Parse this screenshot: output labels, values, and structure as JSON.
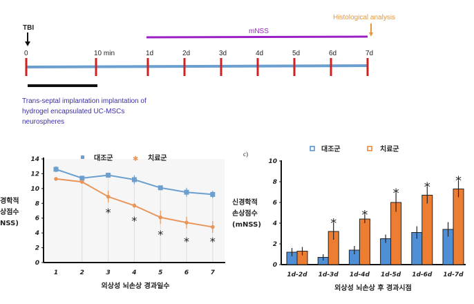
{
  "timeline": {
    "event_label": "TBI",
    "ticks": [
      "0",
      "10 min",
      "1d",
      "2d",
      "3d",
      "4d",
      "5d",
      "6d",
      "7d"
    ],
    "mnss_label": "mNSS",
    "histology_label": "Histological analysis",
    "caption_lines": [
      "Trans-septal implantation  implantation of",
      "hydrogel encapsulated UC-MSCs",
      "neurospheres"
    ],
    "colors": {
      "line": "#6a9fcf",
      "ticks": "#d02020",
      "mnss": "#9b1fc4",
      "histology": "#e8963a",
      "caption": "#3a2fa8"
    }
  },
  "chart_data": [
    {
      "type": "line",
      "x": [
        1,
        2,
        3,
        4,
        5,
        6,
        7
      ],
      "xlabel": "외상성 뇌손상 경과일수",
      "ylabel_lines": [
        "경학적",
        "상점수",
        "NSS)"
      ],
      "ylim": [
        0,
        14
      ],
      "yticks": [
        0,
        2,
        4,
        6,
        8,
        10,
        12,
        14
      ],
      "legend_placement": "top",
      "series": [
        {
          "name": "대조군",
          "color": "#6a9fcf",
          "marker": "square",
          "values": [
            12.6,
            11.4,
            11.8,
            11.2,
            10.1,
            9.5,
            9.2
          ],
          "errors": [
            0.4,
            0.3,
            0.3,
            0.6,
            0.3,
            0.6,
            0.5
          ]
        },
        {
          "name": "치료군",
          "color": "#e8955a",
          "marker": "star",
          "values": [
            11.3,
            10.9,
            8.9,
            7.7,
            6.1,
            5.4,
            4.8
          ],
          "errors": [
            0.2,
            0.2,
            0.8,
            0.3,
            0.9,
            0.8,
            0.8
          ]
        }
      ],
      "significance": {
        "symbol": "*",
        "x": [
          3,
          4,
          5,
          6,
          7
        ]
      }
    },
    {
      "type": "bar",
      "panel_label": "c)",
      "categories": [
        "1d-2d",
        "1d-3d",
        "1d-4d",
        "1d-5d",
        "1d-6d",
        "1d-7d"
      ],
      "xlabel": "외상성 뇌손상 후 경과시점",
      "ylabel_lines": [
        "신경학적",
        "손상점수",
        "(mNSS)"
      ],
      "ylim": [
        0,
        10
      ],
      "yticks": [
        0,
        2,
        4,
        6,
        8,
        10
      ],
      "legend_placement": "top",
      "series": [
        {
          "name": "대조군",
          "color": "#4f8fd6",
          "values": [
            1.2,
            0.7,
            1.4,
            2.5,
            3.1,
            3.4
          ],
          "errors": [
            0.4,
            0.3,
            0.4,
            0.4,
            0.6,
            0.7
          ]
        },
        {
          "name": "치료군",
          "color": "#ed7d31",
          "values": [
            1.3,
            3.2,
            4.4,
            6.0,
            6.7,
            7.3
          ],
          "errors": [
            0.4,
            0.8,
            0.4,
            0.9,
            0.8,
            0.8
          ]
        }
      ],
      "significance": {
        "symbol": "*",
        "categories": [
          "1d-3d",
          "1d-4d",
          "1d-5d",
          "1d-6d",
          "1d-7d"
        ]
      }
    }
  ]
}
